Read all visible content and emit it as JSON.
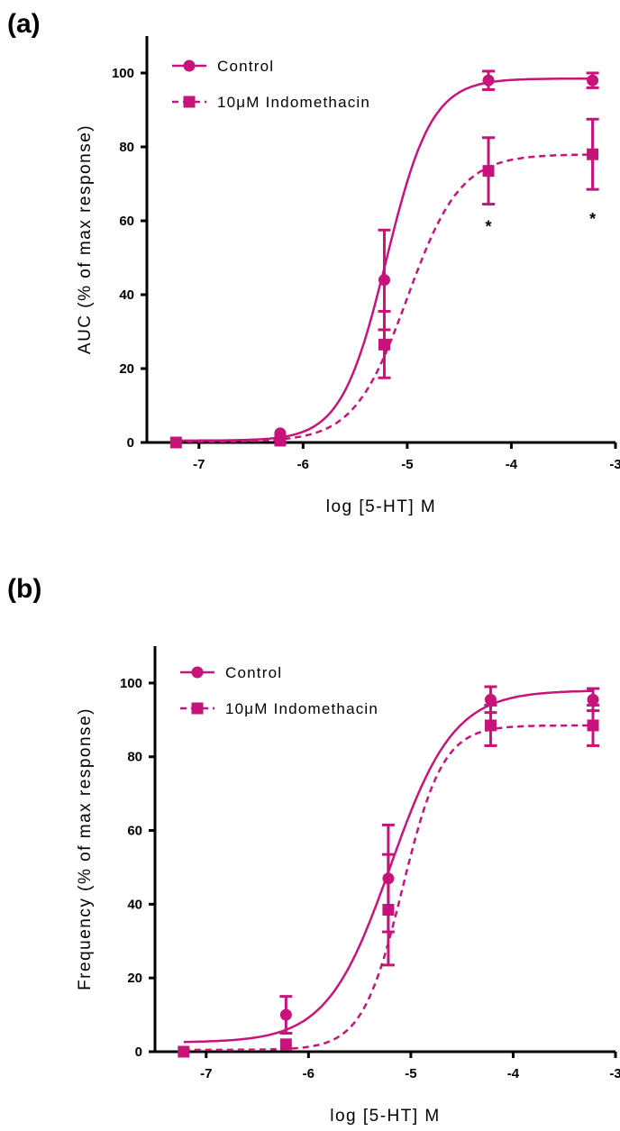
{
  "color": "#C8137A",
  "chart_data": [
    {
      "panel": "(a)",
      "type": "scatter",
      "xlabel": "log [5-HT] M",
      "ylabel": "AUC (% of max response)",
      "xlim": [
        -7.5,
        -3
      ],
      "ylim": [
        0,
        110
      ],
      "xticks": [
        -7,
        -6,
        -5,
        -4,
        -3
      ],
      "yticks": [
        0,
        20,
        40,
        60,
        80,
        100
      ],
      "x": [
        -7.22,
        -6.22,
        -5.22,
        -4.22,
        -3.22
      ],
      "series": [
        {
          "name": "Control",
          "marker": "circle",
          "line": "solid",
          "values": [
            0,
            2.5,
            44,
            98,
            98
          ],
          "errors": [
            0,
            0,
            13.5,
            2.5,
            2
          ],
          "fit": {
            "bottom": 0.5,
            "top": 98.5,
            "logEC50": -5.2,
            "hill": 2.0
          }
        },
        {
          "name": "10μM Indomethacin",
          "marker": "square",
          "line": "dashed",
          "values": [
            0,
            0.5,
            26.5,
            73.5,
            78
          ],
          "errors": [
            0,
            0,
            9,
            9,
            9.5
          ],
          "fit": {
            "bottom": 0.2,
            "top": 78,
            "logEC50": -5.0,
            "hill": 1.7
          }
        }
      ],
      "annotations": [
        {
          "text": "*",
          "x": -4.22,
          "y": 57
        },
        {
          "text": "*",
          "x": -3.22,
          "y": 59
        }
      ]
    },
    {
      "panel": "(b)",
      "type": "scatter",
      "xlabel": "log [5-HT] M",
      "ylabel": "Frequency (% of max response)",
      "xlim": [
        -7.5,
        -3
      ],
      "ylim": [
        0,
        110
      ],
      "xticks": [
        -7,
        -6,
        -5,
        -4,
        -3
      ],
      "yticks": [
        0,
        20,
        40,
        60,
        80,
        100
      ],
      "x": [
        -7.22,
        -6.22,
        -5.22,
        -4.22,
        -3.22
      ],
      "series": [
        {
          "name": "Control",
          "marker": "circle",
          "line": "solid",
          "values": [
            0,
            10,
            47,
            95.5,
            95.5
          ],
          "errors": [
            0,
            5,
            14.5,
            3.5,
            3
          ],
          "fit": {
            "bottom": 2.5,
            "top": 98,
            "logEC50": -5.2,
            "hill": 1.4
          }
        },
        {
          "name": "10μM Indomethacin",
          "marker": "square",
          "line": "dashed",
          "values": [
            0,
            2,
            38.5,
            88.5,
            88.5
          ],
          "errors": [
            0,
            0,
            15,
            5.5,
            5.5
          ],
          "fit": {
            "bottom": 0.5,
            "top": 88.5,
            "logEC50": -5.08,
            "hill": 2.2
          }
        }
      ],
      "annotations": []
    }
  ]
}
